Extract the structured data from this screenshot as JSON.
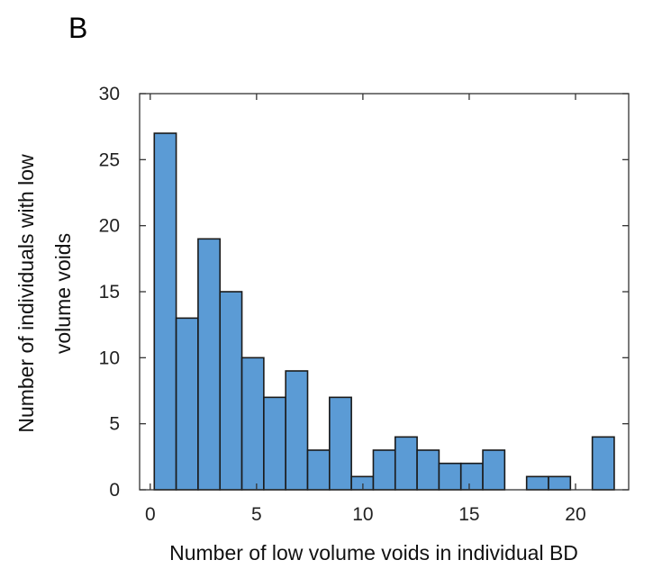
{
  "panel_label": "B",
  "chart_data": {
    "type": "bar",
    "title": "",
    "xlabel": "Number of low volume voids in individual BD",
    "ylabel_lines": [
      "Number of individuals with low",
      "volume voids"
    ],
    "xlim": [
      -0.5,
      22.5
    ],
    "ylim": [
      0,
      30
    ],
    "xticks": [
      0,
      5,
      10,
      15,
      20
    ],
    "yticks": [
      0,
      5,
      10,
      15,
      20,
      25,
      30
    ],
    "bin_width": 1.03,
    "bin_start": 0.19,
    "values": [
      27,
      13,
      19,
      15,
      10,
      7,
      9,
      3,
      7,
      1,
      3,
      4,
      3,
      2,
      2,
      3,
      0,
      1,
      1,
      0,
      4
    ],
    "grid": false,
    "legend": "none",
    "bar_color": "#5b9bd5"
  }
}
